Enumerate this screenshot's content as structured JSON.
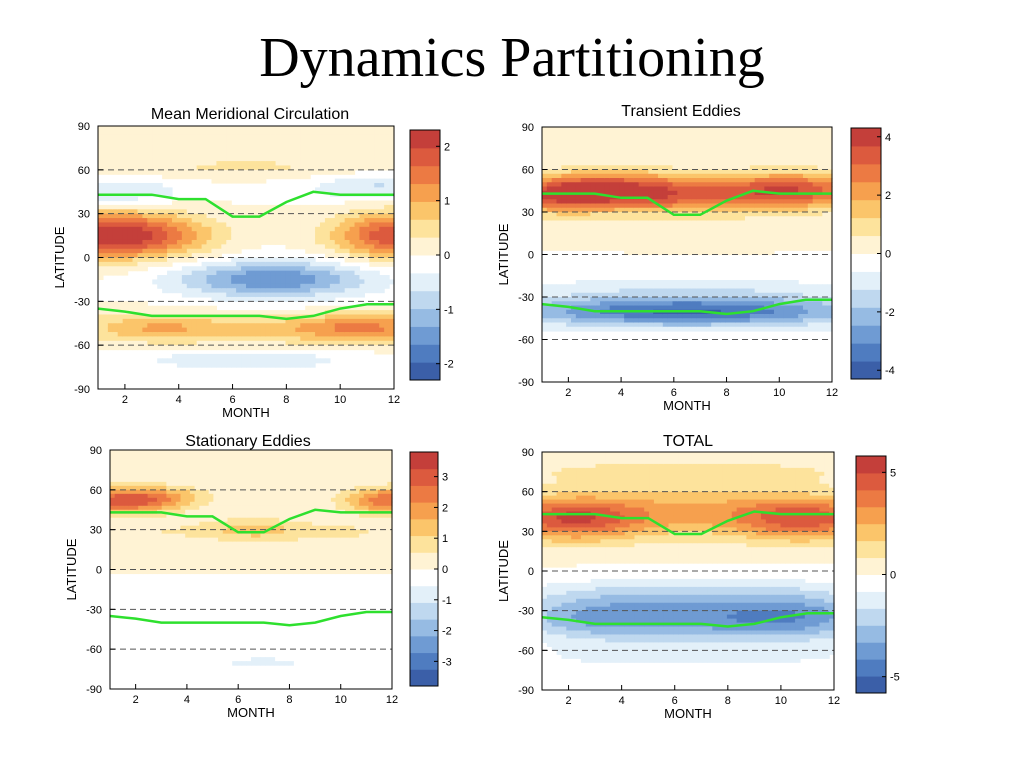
{
  "slide": {
    "title": "Dynamics Partitioning"
  },
  "colors": {
    "scale": [
      "#3b5fa8",
      "#4f7cc0",
      "#6f9bd3",
      "#96bbe3",
      "#bfd8ef",
      "#e3f0f9",
      "#ffffff",
      "#fff3d4",
      "#fde39c",
      "#fbc56a",
      "#f6a04e",
      "#ec7a43",
      "#dc5a3e",
      "#c43f3a"
    ],
    "line": "#2ee02e",
    "dashed": "#555555",
    "axis": "#000000"
  },
  "chart_data": [
    {
      "type": "heatmap",
      "title": "Mean Meridional Circulation",
      "xlabel": "MONTH",
      "ylabel": "LATITUDE",
      "xlim": [
        1,
        12
      ],
      "ylim": [
        -90,
        90
      ],
      "xticks": [
        "2",
        "4",
        "6",
        "8",
        "10",
        "12"
      ],
      "yticks": [
        "90",
        "60",
        "30",
        "0",
        "-30",
        "-60",
        "-90"
      ],
      "dashed_lines": [
        60,
        30,
        0,
        -30,
        -60
      ],
      "colorbar": {
        "range": [
          -2.3,
          2.3
        ],
        "ticks": [
          "2",
          "1",
          "0",
          "-1",
          "-2"
        ],
        "tick_values": [
          2,
          1,
          0,
          -1,
          -2
        ]
      },
      "features": [
        {
          "month": 1.5,
          "lat": 15,
          "value": 2.2,
          "sx": 1.8,
          "sy": 11
        },
        {
          "month": 12,
          "lat": 15,
          "value": 1.9,
          "sx": 1.6,
          "sy": 11
        },
        {
          "month": 4,
          "lat": 15,
          "value": 0.6,
          "sx": 1.4,
          "sy": 10
        },
        {
          "month": 1.5,
          "lat": 45,
          "value": -0.7,
          "sx": 2.0,
          "sy": 6
        },
        {
          "month": 11.5,
          "lat": 48,
          "value": -0.7,
          "sx": 2.0,
          "sy": 6
        },
        {
          "month": 7.5,
          "lat": -15,
          "value": -1.6,
          "sx": 2.6,
          "sy": 9
        },
        {
          "month": 6.5,
          "lat": 62,
          "value": 0.4,
          "sx": 3.0,
          "sy": 5
        },
        {
          "month": 3,
          "lat": -48,
          "value": 0.9,
          "sx": 2.0,
          "sy": 7
        },
        {
          "month": 11,
          "lat": -48,
          "value": 1.3,
          "sx": 2.0,
          "sy": 7
        },
        {
          "month": 7,
          "lat": -50,
          "value": 0.5,
          "sx": 2.5,
          "sy": 7
        },
        {
          "month": 6.5,
          "lat": -70,
          "value": -0.6,
          "sx": 3.0,
          "sy": 5
        }
      ],
      "jet_nh": [
        43,
        43,
        43,
        40,
        40,
        28,
        28,
        38,
        45,
        43,
        43,
        43
      ],
      "jet_sh": [
        -35,
        -37,
        -40,
        -40,
        -40,
        -40,
        -40,
        -42,
        -40,
        -35,
        -32,
        -32
      ]
    },
    {
      "type": "heatmap",
      "title": "Transient Eddies",
      "xlabel": "MONTH",
      "ylabel": "LATITUDE",
      "xlim": [
        1,
        12
      ],
      "ylim": [
        -90,
        90
      ],
      "xticks": [
        "2",
        "4",
        "6",
        "8",
        "10",
        "12"
      ],
      "yticks": [
        "90",
        "60",
        "30",
        "0",
        "-30",
        "-60",
        "-90"
      ],
      "dashed_lines": [
        60,
        30,
        0,
        -30,
        -60
      ],
      "colorbar": {
        "range": [
          -4.3,
          4.3
        ],
        "ticks": [
          "4",
          "2",
          "0",
          "-2",
          "-4"
        ],
        "tick_values": [
          4,
          2,
          0,
          -2,
          -4
        ]
      },
      "features": [
        {
          "month": 4,
          "lat": 45,
          "value": 3.6,
          "sx": 2.0,
          "sy": 9
        },
        {
          "month": 10.5,
          "lat": 45,
          "value": 3.6,
          "sx": 2.0,
          "sy": 9
        },
        {
          "month": 1.5,
          "lat": 42,
          "value": 2.8,
          "sx": 1.5,
          "sy": 9
        },
        {
          "month": 7,
          "lat": 40,
          "value": 1.6,
          "sx": 1.8,
          "sy": 10
        },
        {
          "month": 6.5,
          "lat": -40,
          "value": -3.8,
          "sx": 5.0,
          "sy": 8
        },
        {
          "month": 6.5,
          "lat": -22,
          "value": -0.8,
          "sx": 5.0,
          "sy": 6
        }
      ],
      "jet_nh": [
        43,
        43,
        43,
        40,
        40,
        28,
        28,
        38,
        45,
        43,
        43,
        43
      ],
      "jet_sh": [
        -35,
        -37,
        -40,
        -40,
        -40,
        -40,
        -40,
        -42,
        -40,
        -35,
        -32,
        -32
      ]
    },
    {
      "type": "heatmap",
      "title": "Stationary Eddies",
      "xlabel": "MONTH",
      "ylabel": "LATITUDE",
      "xlim": [
        1,
        12
      ],
      "ylim": [
        -90,
        90
      ],
      "xticks": [
        "2",
        "4",
        "6",
        "8",
        "10",
        "12"
      ],
      "yticks": [
        "90",
        "60",
        "30",
        "0",
        "-30",
        "-60",
        "-90"
      ],
      "dashed_lines": [
        60,
        30,
        0,
        -30,
        -60
      ],
      "colorbar": {
        "range": [
          -3.8,
          3.8
        ],
        "ticks": [
          "3",
          "2",
          "1",
          "0",
          "-1",
          "-2",
          "-3"
        ],
        "tick_values": [
          3,
          2,
          1,
          0,
          -1,
          -2,
          -3
        ]
      },
      "features": [
        {
          "month": 1.5,
          "lat": 52,
          "value": 3.0,
          "sx": 1.5,
          "sy": 7
        },
        {
          "month": 12,
          "lat": 52,
          "value": 2.7,
          "sx": 1.3,
          "sy": 7
        },
        {
          "month": 3.5,
          "lat": 55,
          "value": 0.8,
          "sx": 1.2,
          "sy": 6
        },
        {
          "month": 6.5,
          "lat": 30,
          "value": 1.2,
          "sx": 1.4,
          "sy": 6
        },
        {
          "month": 2.5,
          "lat": 28,
          "value": 0.5,
          "sx": 2.0,
          "sy": 7
        },
        {
          "month": 10,
          "lat": 28,
          "value": 0.6,
          "sx": 2.0,
          "sy": 7
        },
        {
          "month": 6.5,
          "lat": -45,
          "value": -0.5,
          "sx": 5.0,
          "sy": 9
        },
        {
          "month": 7,
          "lat": -70,
          "value": -0.6,
          "sx": 2.5,
          "sy": 5
        }
      ],
      "jet_nh": [
        43,
        43,
        43,
        40,
        40,
        28,
        28,
        38,
        45,
        43,
        43,
        43
      ],
      "jet_sh": [
        -35,
        -37,
        -40,
        -40,
        -40,
        -40,
        -40,
        -42,
        -40,
        -35,
        -32,
        -32
      ]
    },
    {
      "type": "heatmap",
      "title": "TOTAL",
      "xlabel": "MONTH",
      "ylabel": "LATITUDE",
      "xlim": [
        1,
        12
      ],
      "ylim": [
        -90,
        90
      ],
      "xticks": [
        "2",
        "4",
        "6",
        "8",
        "10",
        "12"
      ],
      "yticks": [
        "90",
        "60",
        "30",
        "0",
        "-30",
        "-60",
        "-90"
      ],
      "dashed_lines": [
        60,
        30,
        0,
        -30,
        -60
      ],
      "colorbar": {
        "range": [
          -5.8,
          5.8
        ],
        "ticks": [
          "5",
          "0",
          "-5"
        ],
        "tick_values": [
          5,
          0,
          -5
        ]
      },
      "features": [
        {
          "month": 2,
          "lat": 40,
          "value": 4.8,
          "sx": 2.0,
          "sy": 12
        },
        {
          "month": 11,
          "lat": 40,
          "value": 4.5,
          "sx": 2.0,
          "sy": 12
        },
        {
          "month": 6.5,
          "lat": 45,
          "value": 2.2,
          "sx": 2.5,
          "sy": 14
        },
        {
          "month": 6.5,
          "lat": 75,
          "value": 1.2,
          "sx": 5.0,
          "sy": 7
        },
        {
          "month": 7,
          "lat": -35,
          "value": -3.5,
          "sx": 3.5,
          "sy": 14
        },
        {
          "month": 2.5,
          "lat": -35,
          "value": -2.0,
          "sx": 2.0,
          "sy": 12
        },
        {
          "month": 11,
          "lat": -35,
          "value": -2.2,
          "sx": 2.0,
          "sy": 12
        },
        {
          "month": 6.5,
          "lat": -15,
          "value": -0.9,
          "sx": 5.0,
          "sy": 8
        },
        {
          "month": 6.5,
          "lat": -65,
          "value": -1.0,
          "sx": 5.0,
          "sy": 6
        }
      ],
      "jet_nh": [
        43,
        43,
        43,
        40,
        40,
        28,
        28,
        38,
        45,
        43,
        43,
        43
      ],
      "jet_sh": [
        -35,
        -37,
        -40,
        -40,
        -40,
        -40,
        -40,
        -42,
        -40,
        -35,
        -32,
        -32
      ]
    }
  ]
}
